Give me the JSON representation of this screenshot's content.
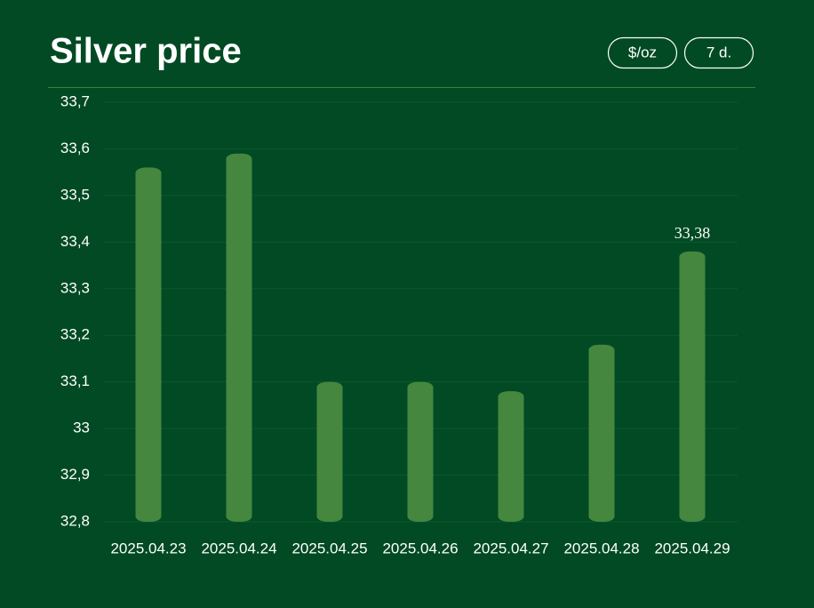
{
  "chart_data": {
    "type": "bar",
    "title": "Silver price",
    "controls": [
      "$/oz",
      "7 d."
    ],
    "categories": [
      "2025.04.23",
      "2025.04.24",
      "2025.04.25",
      "2025.04.26",
      "2025.04.27",
      "2025.04.28",
      "2025.04.29"
    ],
    "values": [
      33.56,
      33.59,
      33.1,
      33.1,
      33.08,
      33.18,
      33.38
    ],
    "value_labels": [
      null,
      null,
      null,
      null,
      null,
      null,
      "33,38"
    ],
    "color": "#45873f",
    "ylim": [
      32.8,
      33.7
    ],
    "yticks": [
      {
        "value": 32.8,
        "label": "32,8"
      },
      {
        "value": 32.9,
        "label": "32,9"
      },
      33,
      {
        "value": 33.1,
        "label": "33,1"
      },
      {
        "value": 33.2,
        "label": "33,2"
      },
      {
        "value": 33.3,
        "label": "33,3"
      },
      {
        "value": 33.4,
        "label": "33,4"
      },
      {
        "value": 33.5,
        "label": "33,5"
      },
      {
        "value": 33.6,
        "label": "33,6"
      },
      {
        "value": 33.7,
        "label": "33,7"
      }
    ],
    "grid": true
  }
}
